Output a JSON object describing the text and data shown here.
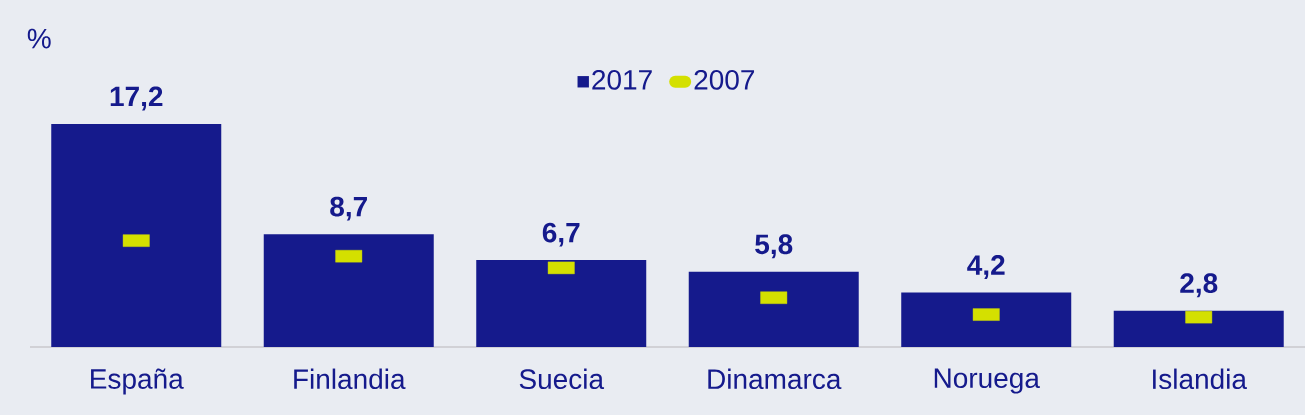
{
  "chart_data": {
    "type": "bar",
    "ylabel": "%",
    "categories": [
      "España",
      "Finlandia",
      "Suecia",
      "Dinamarca",
      "Noruega",
      "Islandia"
    ],
    "series": [
      {
        "name": "2017",
        "color": "#151a8c",
        "values": [
          17.2,
          8.7,
          6.7,
          5.8,
          4.2,
          2.8
        ],
        "value_labels": [
          "17,2",
          "8,7",
          "6,7",
          "5,8",
          "4,2",
          "2,8"
        ]
      },
      {
        "name": "2007",
        "type": "scatter",
        "color": "#d4e000",
        "values": [
          8.2,
          7.0,
          6.1,
          3.8,
          2.5,
          2.3
        ]
      }
    ],
    "legend": "top",
    "marker": "square"
  }
}
